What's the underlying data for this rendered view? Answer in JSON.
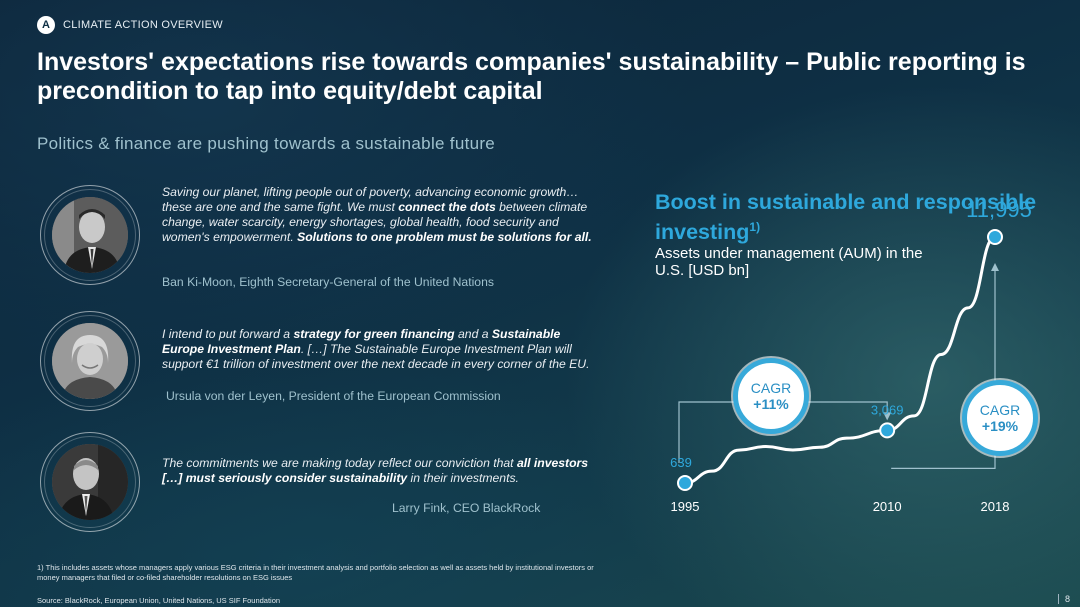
{
  "section": {
    "letter": "A",
    "label": "CLIMATE ACTION OVERVIEW"
  },
  "title": "Investors' expectations rise towards companies' sustainability – Public reporting is precondition to tap into equity/debt capital",
  "subtitle": "Politics & finance are pushing towards a sustainable future",
  "quotes": [
    {
      "parts": [
        {
          "t": "Saving our planet, lifting people out of poverty, advancing economic growth… these are one and the same fight. We must ",
          "b": false
        },
        {
          "t": "connect the dots",
          "b": true
        },
        {
          "t": " between climate change, water scarcity, energy shortages, global health, food security and women's empowerment. ",
          "b": false
        },
        {
          "t": "Solutions to one problem must be solutions for all.",
          "b": true
        }
      ],
      "author": "Ban Ki-Moon, Eighth Secretary-General of the United Nations"
    },
    {
      "parts": [
        {
          "t": "I intend to put forward a ",
          "b": false
        },
        {
          "t": "strategy for green financing",
          "b": true
        },
        {
          "t": " and a ",
          "b": false
        },
        {
          "t": "Sustainable Europe Investment Plan",
          "b": true
        },
        {
          "t": ". […] The Sustainable Europe Investment Plan will support €1 trillion of investment over the next decade in every corner of the EU.",
          "b": false
        }
      ],
      "author": "Ursula von der Leyen, President of the European Commission"
    },
    {
      "parts": [
        {
          "t": "The commitments we are making today reflect our conviction that ",
          "b": false
        },
        {
          "t": "all investors […] must seriously consider sustainability",
          "b": true
        },
        {
          "t": " in their investments.",
          "b": false
        }
      ],
      "author": "Larry Fink, CEO BlackRock"
    }
  ],
  "chart_title": "Boost in sustainable and responsible investing",
  "chart_title_sup": "1)",
  "chart_subtitle": "Assets under management (AUM) in the U.S. [USD bn]",
  "chart_data": {
    "type": "line",
    "title": "Boost in sustainable and responsible investing",
    "ylabel": "Assets under management (AUM) in the U.S. [USD bn]",
    "x": [
      1995,
      1997,
      1999,
      2001,
      2003,
      2005,
      2007,
      2010,
      2012,
      2014,
      2016,
      2018
    ],
    "y": [
      639,
      1185,
      2159,
      2323,
      2164,
      2290,
      2711,
      3069,
      3740,
      6572,
      8723,
      11995
    ],
    "x_tick_labels": [
      "1995",
      "2010",
      "2018"
    ],
    "point_labels": [
      {
        "x": 1995,
        "label": "639"
      },
      {
        "x": 2010,
        "label": "3,069"
      },
      {
        "x": 2018,
        "label": "11,995"
      }
    ],
    "cagr": [
      {
        "label": "CAGR",
        "value": "+11%",
        "from": 1995,
        "to": 2010
      },
      {
        "label": "CAGR",
        "value": "+19%",
        "from": 2010,
        "to": 2018
      }
    ],
    "colors": {
      "line": "#ffffff",
      "marker": "#2ea8dc",
      "accent": "#2ea8dc"
    }
  },
  "footnote": "1) This includes assets whose managers apply various ESG criteria in their investment analysis and portfolio selection as well as assets held by institutional investors or money managers that filed or co-filed shareholder resolutions on ESG issues",
  "source": "Source: BlackRock, European Union, United Nations, US SIF Foundation",
  "page_number": "8"
}
